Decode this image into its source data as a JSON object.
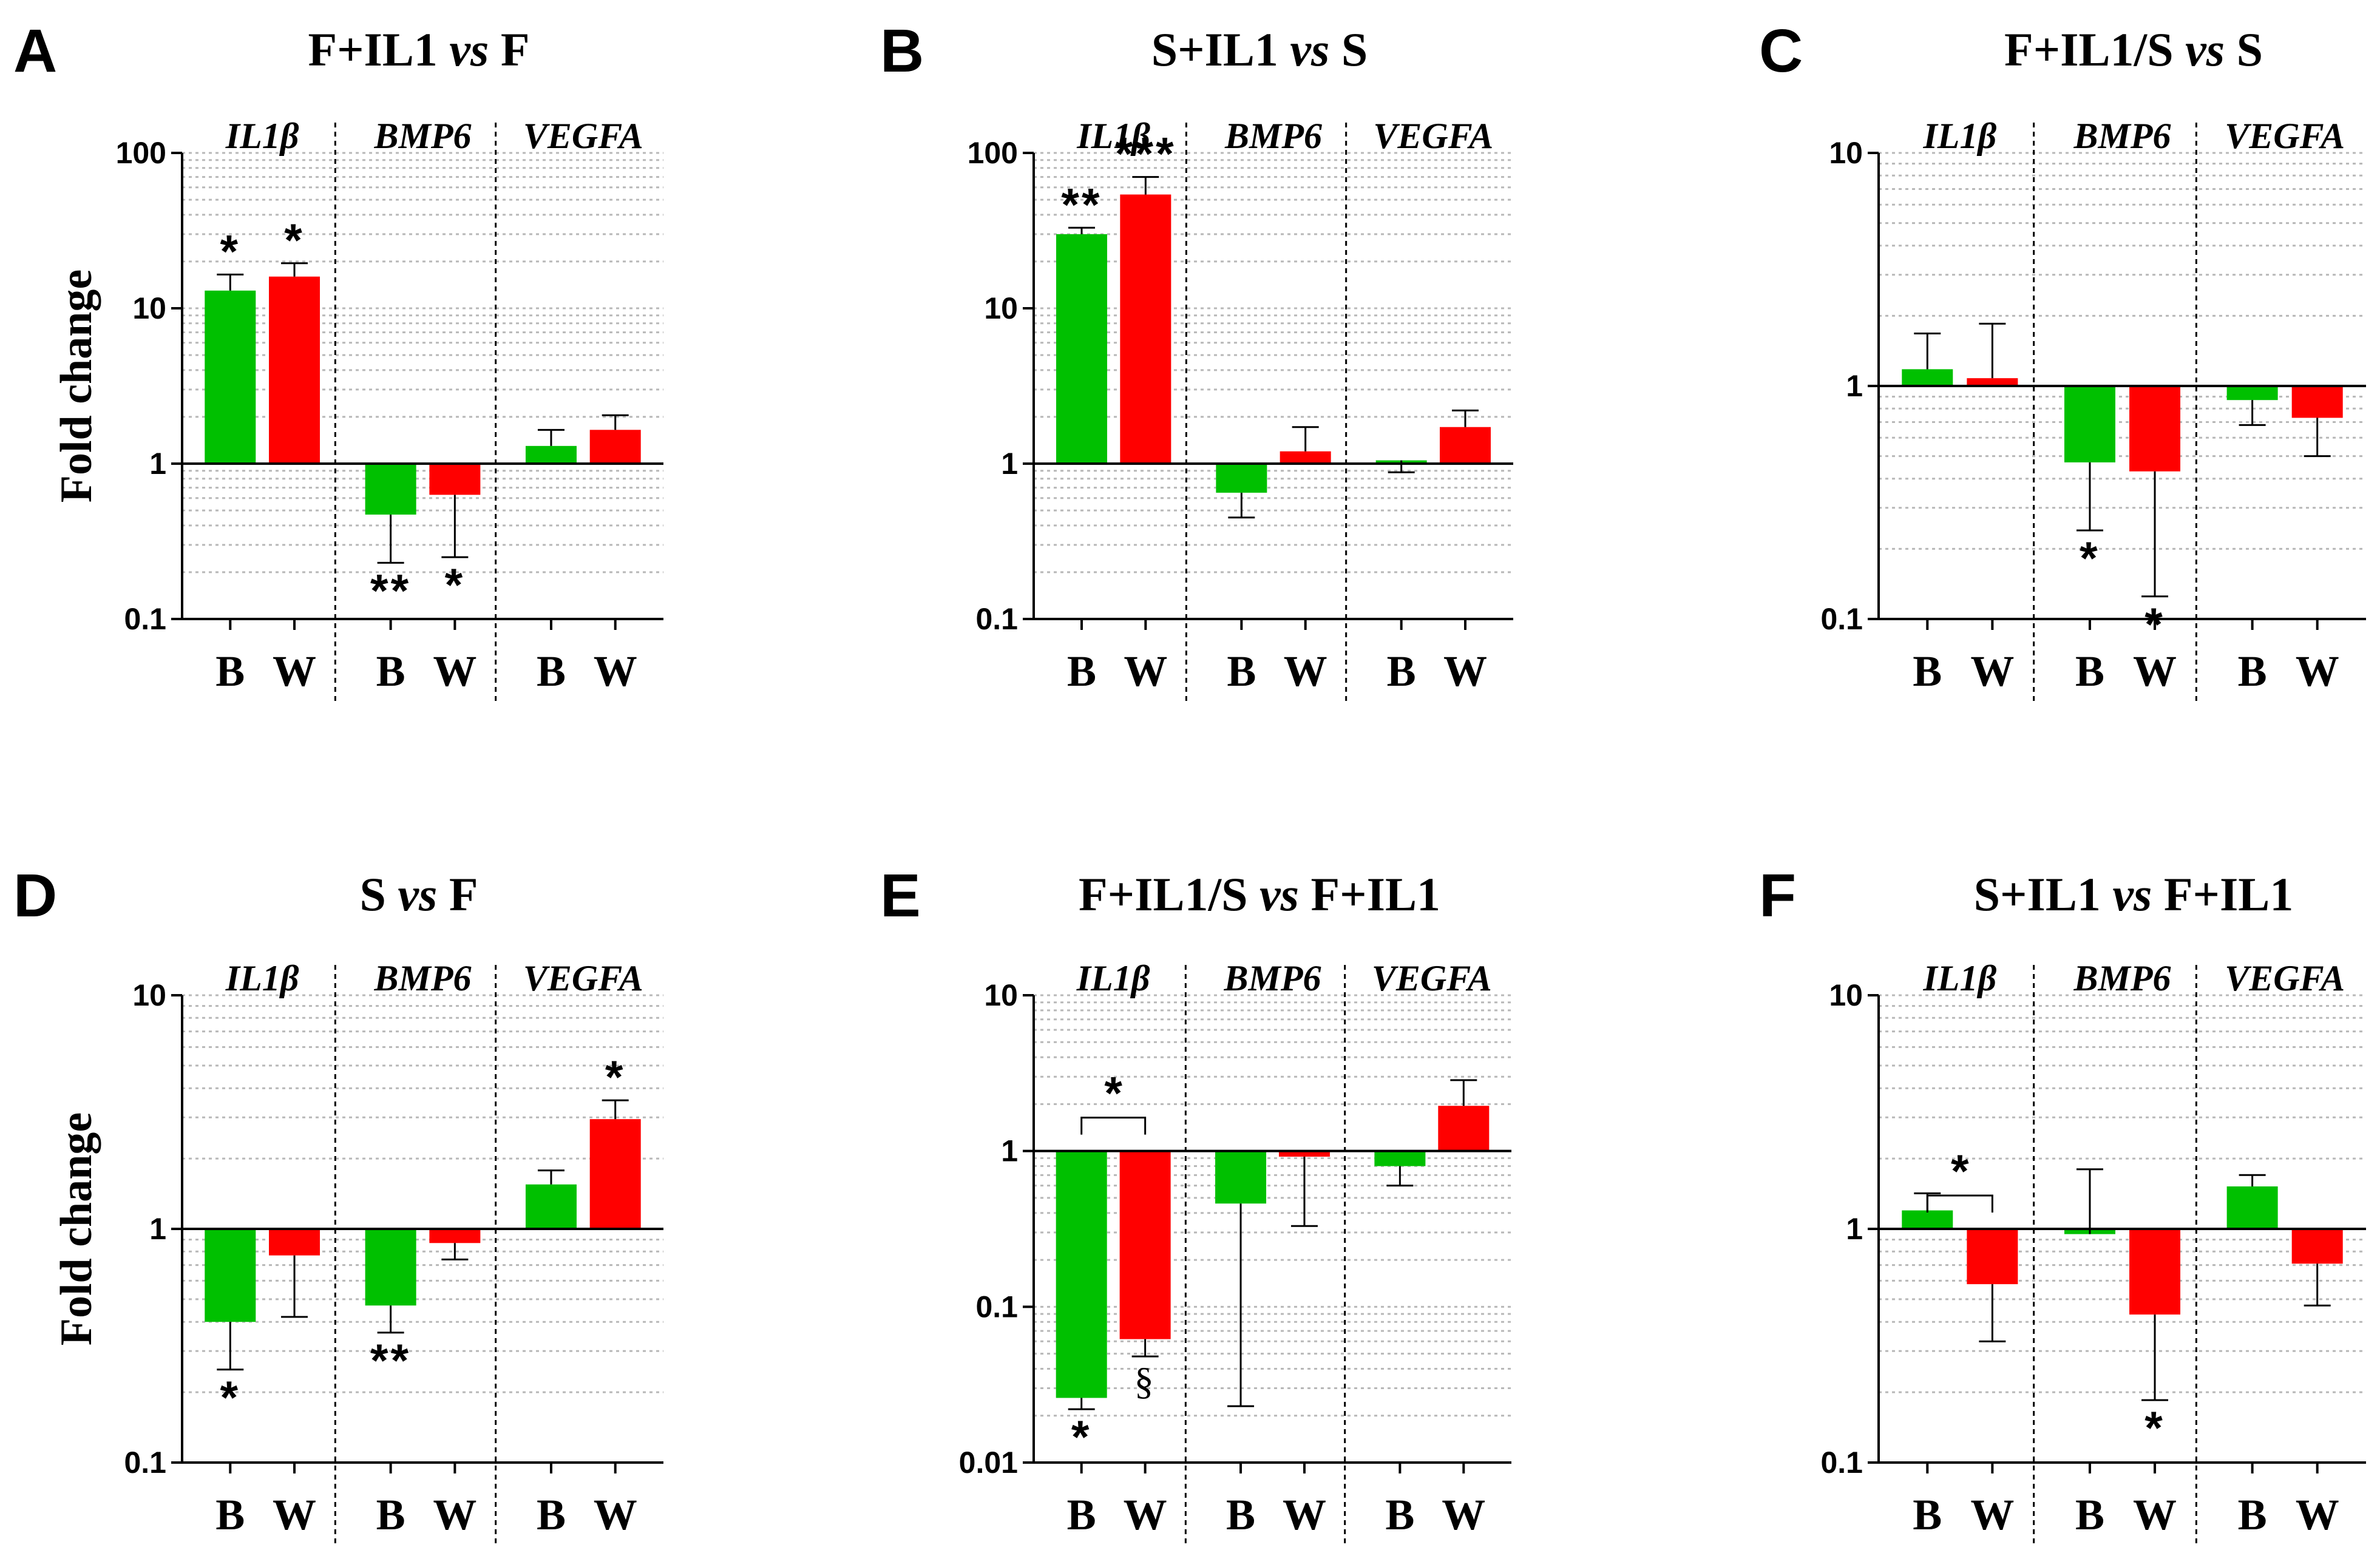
{
  "colors": {
    "B": "#00c000",
    "W": "#ff0000",
    "W_light": "#ff4444",
    "grid": "#b8b8b8",
    "axis": "#000000"
  },
  "chart_data": [
    {
      "type": "bar",
      "panel": "A",
      "title": "F+IL1",
      "vs": "vs",
      "title_right": "F",
      "ylabel": "Fold change",
      "yscale": "log",
      "ylim": [
        0.1,
        100
      ],
      "yticks": [
        "0.1",
        "1",
        "10",
        "100"
      ],
      "ytick_values": [
        0.1,
        1,
        10,
        100
      ],
      "genes": [
        "IL1β",
        "BMP6",
        "VEGFA"
      ],
      "categories": [
        "B",
        "W"
      ],
      "bars": [
        {
          "gene": "IL1β",
          "cat": "B",
          "value": 13,
          "err": 16.5,
          "sig": "*"
        },
        {
          "gene": "IL1β",
          "cat": "W",
          "value": 16,
          "err": 19.5,
          "sig": "*"
        },
        {
          "gene": "BMP6",
          "cat": "B",
          "value": 0.47,
          "err": 0.23,
          "sig": "**"
        },
        {
          "gene": "BMP6",
          "cat": "W",
          "value": 0.63,
          "err": 0.25,
          "sig": "*"
        },
        {
          "gene": "VEGFA",
          "cat": "B",
          "value": 1.3,
          "err": 1.65,
          "sig": ""
        },
        {
          "gene": "VEGFA",
          "cat": "W",
          "value": 1.65,
          "err": 2.05,
          "sig": ""
        }
      ],
      "brackets": []
    },
    {
      "type": "bar",
      "panel": "B",
      "title": "S+IL1",
      "vs": "vs",
      "title_right": "S",
      "ylabel": "",
      "yscale": "log",
      "ylim": [
        0.1,
        100
      ],
      "yticks": [
        "0.1",
        "1",
        "10",
        "100"
      ],
      "ytick_values": [
        0.1,
        1,
        10,
        100
      ],
      "genes": [
        "IL1β",
        "BMP6",
        "VEGFA"
      ],
      "categories": [
        "B",
        "W"
      ],
      "bars": [
        {
          "gene": "IL1β",
          "cat": "B",
          "value": 30,
          "err": 33,
          "sig": "**"
        },
        {
          "gene": "IL1β",
          "cat": "W",
          "value": 54,
          "err": 70,
          "sig": "***"
        },
        {
          "gene": "BMP6",
          "cat": "B",
          "value": 0.65,
          "err": 0.45,
          "sig": ""
        },
        {
          "gene": "BMP6",
          "cat": "W",
          "value": 1.2,
          "err": 1.72,
          "sig": ""
        },
        {
          "gene": "VEGFA",
          "cat": "B",
          "value": 1.05,
          "err": 0.88,
          "sig": ""
        },
        {
          "gene": "VEGFA",
          "cat": "W",
          "value": 1.72,
          "err": 2.2,
          "sig": ""
        }
      ],
      "brackets": []
    },
    {
      "type": "bar",
      "panel": "C",
      "title": "F+IL1/S",
      "vs": "vs",
      "title_right": "S",
      "ylabel": "",
      "yscale": "log",
      "ylim": [
        0.1,
        10
      ],
      "yticks": [
        "0.1",
        "1",
        "10"
      ],
      "ytick_values": [
        0.1,
        1,
        10
      ],
      "genes": [
        "IL1β",
        "BMP6",
        "VEGFA"
      ],
      "categories": [
        "B",
        "W"
      ],
      "bars": [
        {
          "gene": "IL1β",
          "cat": "B",
          "value": 1.18,
          "err": 1.68,
          "sig": ""
        },
        {
          "gene": "IL1β",
          "cat": "W",
          "value": 1.08,
          "err": 1.85,
          "sig": ""
        },
        {
          "gene": "BMP6",
          "cat": "B",
          "value": 0.47,
          "err": 0.24,
          "sig": "*"
        },
        {
          "gene": "BMP6",
          "cat": "W",
          "value": 0.43,
          "err": 0.125,
          "sig": "*"
        },
        {
          "gene": "VEGFA",
          "cat": "B",
          "value": 0.87,
          "err": 0.68,
          "sig": ""
        },
        {
          "gene": "VEGFA",
          "cat": "W",
          "value": 0.73,
          "err": 0.5,
          "sig": ""
        }
      ],
      "brackets": []
    },
    {
      "type": "bar",
      "panel": "D",
      "title": "S",
      "vs": "vs",
      "title_right": "F",
      "ylabel": "Fold change",
      "yscale": "log",
      "ylim": [
        0.1,
        10
      ],
      "yticks": [
        "0.1",
        "1",
        "10"
      ],
      "ytick_values": [
        0.1,
        1,
        10
      ],
      "genes": [
        "IL1β",
        "BMP6",
        "VEGFA"
      ],
      "categories": [
        "B",
        "W"
      ],
      "bars": [
        {
          "gene": "IL1β",
          "cat": "B",
          "value": 0.4,
          "err": 0.25,
          "sig": "*"
        },
        {
          "gene": "IL1β",
          "cat": "W",
          "value": 0.77,
          "err": 0.42,
          "sig": ""
        },
        {
          "gene": "BMP6",
          "cat": "B",
          "value": 0.47,
          "err": 0.36,
          "sig": "**"
        },
        {
          "gene": "BMP6",
          "cat": "W",
          "value": 0.87,
          "err": 0.74,
          "sig": ""
        },
        {
          "gene": "VEGFA",
          "cat": "B",
          "value": 1.55,
          "err": 1.78,
          "sig": ""
        },
        {
          "gene": "VEGFA",
          "cat": "W",
          "value": 2.95,
          "err": 3.55,
          "sig": "*"
        }
      ],
      "brackets": []
    },
    {
      "type": "bar",
      "panel": "E",
      "title": "F+IL1/S",
      "vs": "vs",
      "title_right": "F+IL1",
      "ylabel": "",
      "yscale": "log",
      "ylim": [
        0.01,
        10
      ],
      "yticks": [
        "0.01",
        "0.1",
        "1",
        "10"
      ],
      "ytick_values": [
        0.01,
        0.1,
        1,
        10
      ],
      "genes": [
        "IL1β",
        "BMP6",
        "VEGFA"
      ],
      "categories": [
        "B",
        "W"
      ],
      "bars": [
        {
          "gene": "IL1β",
          "cat": "B",
          "value": 0.026,
          "err": 0.022,
          "sig": "*"
        },
        {
          "gene": "IL1β",
          "cat": "W",
          "value": 0.062,
          "err": 0.048,
          "sig": "§"
        },
        {
          "gene": "BMP6",
          "cat": "B",
          "value": 0.46,
          "err": 0.023,
          "sig": ""
        },
        {
          "gene": "BMP6",
          "cat": "W",
          "value": 0.92,
          "err": 0.33,
          "sig": ""
        },
        {
          "gene": "VEGFA",
          "cat": "B",
          "value": 0.8,
          "err": 0.6,
          "sig": ""
        },
        {
          "gene": "VEGFA",
          "cat": "W",
          "value": 1.95,
          "err": 2.85,
          "sig": ""
        }
      ],
      "brackets": [
        {
          "from": 0,
          "to": 1,
          "label": "*"
        }
      ]
    },
    {
      "type": "bar",
      "panel": "F",
      "title": "S+IL1",
      "vs": "vs",
      "title_right": "F+IL1",
      "ylabel": "",
      "yscale": "log",
      "ylim": [
        0.1,
        10
      ],
      "yticks": [
        "0.1",
        "1",
        "10"
      ],
      "ytick_values": [
        0.1,
        1,
        10
      ],
      "genes": [
        "IL1β",
        "BMP6",
        "VEGFA"
      ],
      "categories": [
        "B",
        "W"
      ],
      "bars": [
        {
          "gene": "IL1β",
          "cat": "B",
          "value": 1.2,
          "err": 1.42,
          "sig": ""
        },
        {
          "gene": "IL1β",
          "cat": "W",
          "value": 0.58,
          "err": 0.33,
          "sig": ""
        },
        {
          "gene": "BMP6",
          "cat": "B",
          "value": 0.95,
          "err": 1.8,
          "sig": ""
        },
        {
          "gene": "BMP6",
          "cat": "W",
          "value": 0.43,
          "err": 0.185,
          "sig": "*"
        },
        {
          "gene": "VEGFA",
          "cat": "B",
          "value": 1.52,
          "err": 1.7,
          "sig": ""
        },
        {
          "gene": "VEGFA",
          "cat": "W",
          "value": 0.71,
          "err": 0.47,
          "sig": ""
        }
      ],
      "brackets": [
        {
          "from": 0,
          "to": 1,
          "label": "*"
        }
      ]
    }
  ]
}
